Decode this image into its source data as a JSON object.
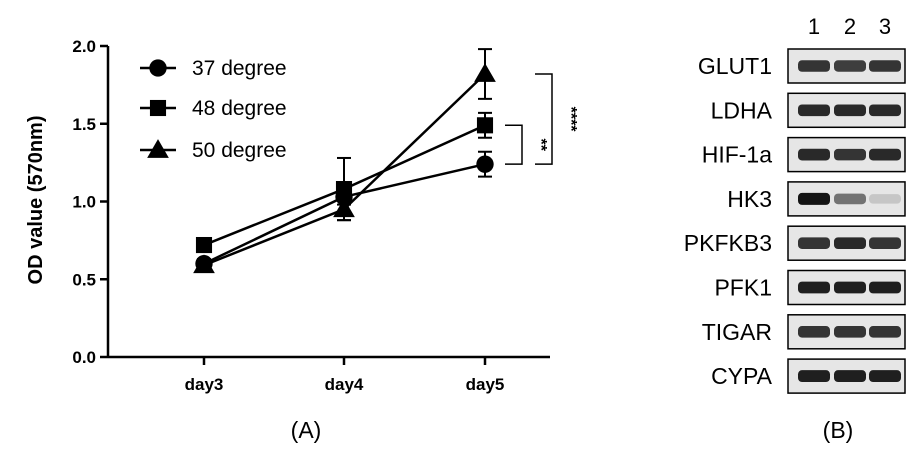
{
  "chart_data": {
    "type": "line",
    "panel_label": "(A)",
    "xlabel": "",
    "ylabel": "OD value (570nm)",
    "categories": [
      "day3",
      "day4",
      "day5"
    ],
    "ylim": [
      0.0,
      2.0
    ],
    "yticks": [
      "0.0",
      "0.5",
      "1.0",
      "1.5",
      "2.0"
    ],
    "grid": false,
    "legend_position": "top-left",
    "series": [
      {
        "name": "37 degree",
        "marker": "circle",
        "values": [
          0.6,
          1.03,
          1.24
        ],
        "errors": [
          0.03,
          0.05,
          0.08
        ]
      },
      {
        "name": "48 degree",
        "marker": "square",
        "values": [
          0.72,
          1.08,
          1.49
        ],
        "errors": [
          0.02,
          0.2,
          0.08
        ]
      },
      {
        "name": "50 degree",
        "marker": "triangle",
        "values": [
          0.59,
          0.95,
          1.82
        ],
        "errors": [
          0.03,
          0.07,
          0.16
        ]
      }
    ],
    "significance": [
      {
        "label": "**",
        "between": [
          "37 degree",
          "48 degree"
        ]
      },
      {
        "label": "****",
        "between": [
          "37 degree",
          "50 degree"
        ]
      }
    ],
    "color": "#000000"
  },
  "gel": {
    "panel_label": "(B)",
    "lanes": [
      "1",
      "2",
      "3"
    ],
    "rows": [
      {
        "gene": "GLUT1",
        "intensity": [
          0.85,
          0.8,
          0.85
        ]
      },
      {
        "gene": "LDHA",
        "intensity": [
          0.9,
          0.9,
          0.9
        ]
      },
      {
        "gene": "HIF-1a",
        "intensity": [
          0.9,
          0.85,
          0.9
        ]
      },
      {
        "gene": "HK3",
        "intensity": [
          1.0,
          0.55,
          0.15
        ]
      },
      {
        "gene": "PKFKB3",
        "intensity": [
          0.85,
          0.9,
          0.85
        ]
      },
      {
        "gene": "PFK1",
        "intensity": [
          0.95,
          0.95,
          0.95
        ]
      },
      {
        "gene": "TIGAR",
        "intensity": [
          0.85,
          0.85,
          0.85
        ]
      },
      {
        "gene": "CYPA",
        "intensity": [
          0.95,
          0.95,
          0.95
        ]
      }
    ],
    "background_color": "#e6e6e6",
    "band_color": "#141414"
  }
}
